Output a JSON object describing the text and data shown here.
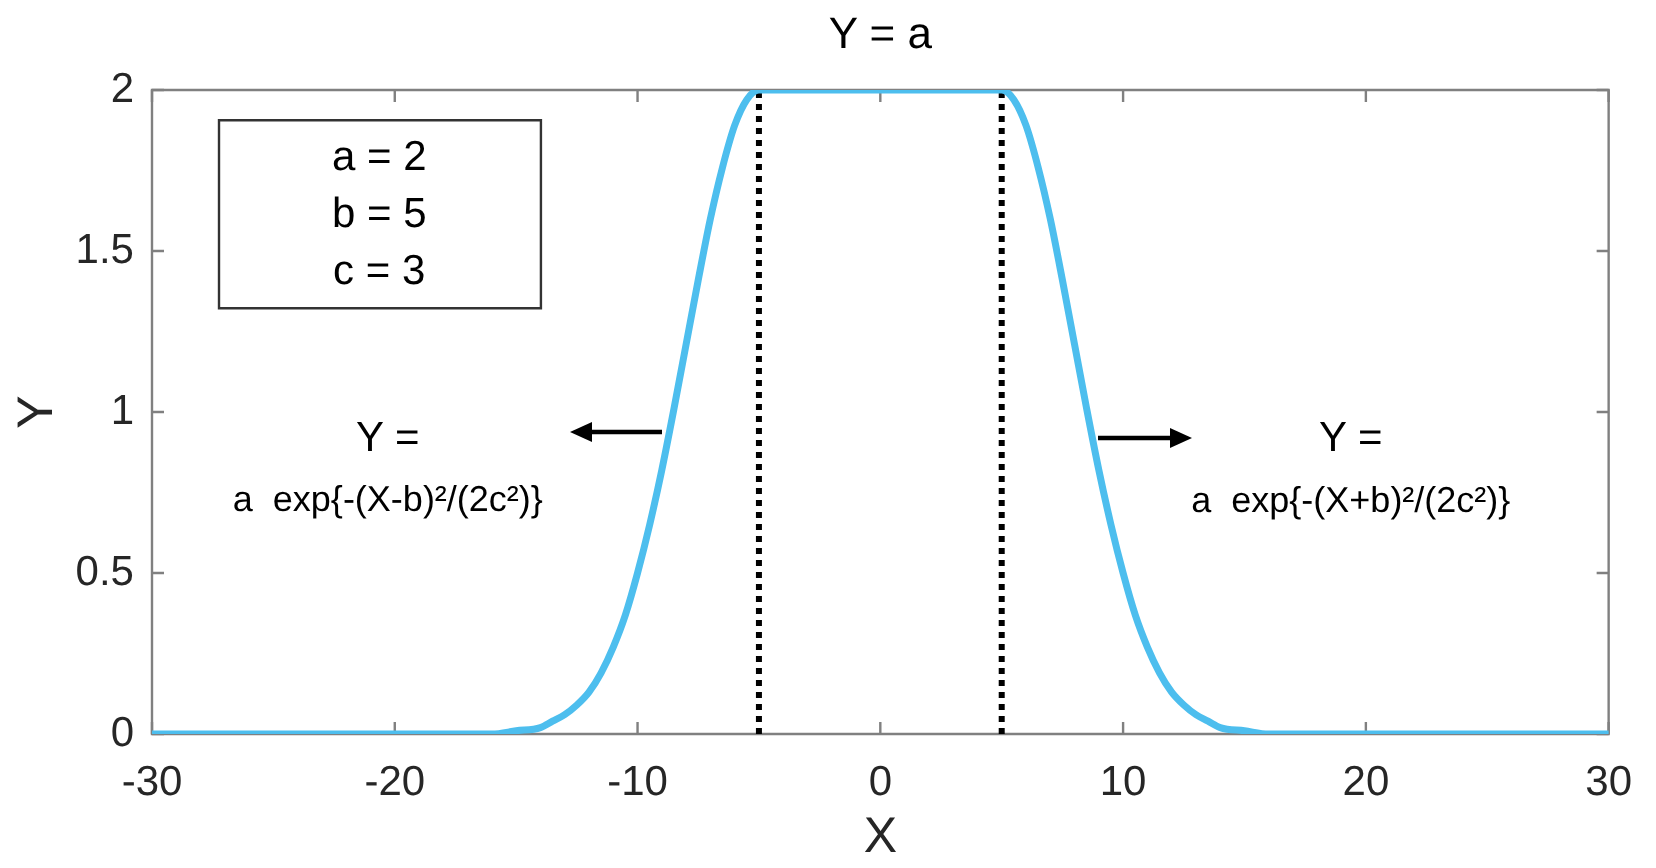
{
  "chart_data": {
    "type": "line",
    "xlabel": "X",
    "ylabel": "Y",
    "annotations": [
      {
        "text": "Y = a",
        "x": 0,
        "y": 2
      },
      "a = 2\nb = 5\nc = 3",
      {
        "text": "Y =\na  exp{-(X-b)²/(2c²)}",
        "x": -9,
        "y": 0.94
      },
      {
        "text": "Y =\na  exp{-(X+b)²/(2c²)}",
        "x": 9,
        "y": 0.92
      }
    ],
    "x": [
      -30,
      -20,
      -17,
      -16,
      -15,
      -14,
      -13.5,
      -13,
      -12.5,
      -12,
      -11.5,
      -11,
      -10.5,
      -10,
      -9.5,
      -9,
      -8.5,
      -8,
      -7.5,
      -7,
      -6.5,
      -6,
      -5.5,
      -5,
      5,
      5.5,
      6,
      6.5,
      7,
      7.5,
      8,
      8.5,
      9,
      9.5,
      10,
      10.5,
      11,
      11.5,
      12,
      12.5,
      13,
      13.5,
      14,
      15,
      16,
      17,
      20,
      30
    ],
    "series": [
      {
        "color": "#4dbeee",
        "values": [
          0,
          0,
          0,
          0,
          0.01,
          0.02,
          0.04,
          0.06,
          0.09,
          0.13,
          0.19,
          0.27,
          0.37,
          0.5,
          0.65,
          0.82,
          1.01,
          1.21,
          1.41,
          1.6,
          1.76,
          1.89,
          1.97,
          2,
          2,
          1.97,
          1.89,
          1.76,
          1.6,
          1.41,
          1.21,
          1.01,
          0.82,
          0.65,
          0.5,
          0.37,
          0.27,
          0.19,
          0.13,
          0.09,
          0.06,
          0.04,
          0.02,
          0.01,
          0,
          0,
          0,
          0
        ]
      }
    ],
    "xlim": [
      -30,
      30
    ],
    "xticks": [
      -30,
      -20,
      -10,
      0,
      10,
      20,
      30
    ],
    "ylim": [
      0,
      2
    ],
    "yticks": [
      0,
      0.5,
      1,
      1.5,
      2
    ],
    "ref_lines": [
      {
        "axis": "x",
        "value": -5,
        "color": "#000000",
        "line_style": "dotted"
      },
      {
        "axis": "x",
        "value": 5,
        "color": "#000000",
        "line_style": "dotted"
      }
    ]
  }
}
